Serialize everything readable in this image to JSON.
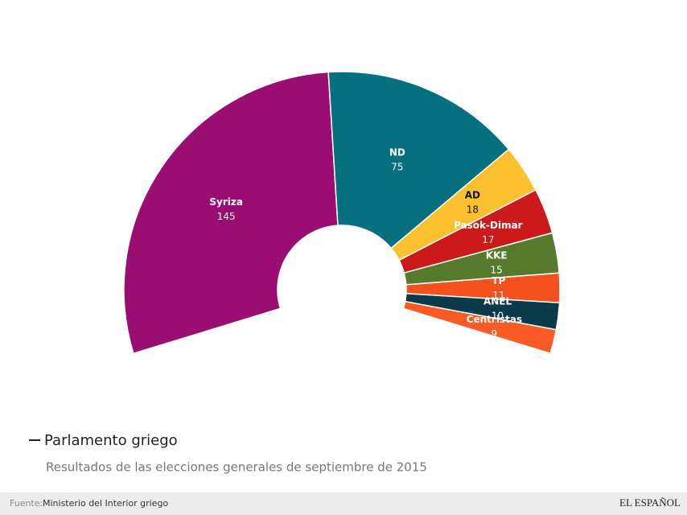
{
  "chart_data": {
    "type": "semi-donut",
    "title": "Parlamento griego",
    "subtitle": "Resultados de las elecciones generales de septiembre de 2015",
    "source_label": "Fuente:",
    "source": "Ministerio del Interior griego",
    "brand": "EL ESPAÑOL",
    "categories": [
      "Syriza",
      "ND",
      "AD",
      "Pasok-Dimar",
      "KKE",
      "TP",
      "ANEL",
      "Centristas"
    ],
    "values": [
      145,
      75,
      18,
      17,
      15,
      11,
      10,
      9
    ],
    "colors": [
      "#9a0d72",
      "#06707e",
      "#fbc02d",
      "#cc1a1a",
      "#567a2b",
      "#f4511e",
      "#0b3a48",
      "#fa5a24"
    ],
    "label_colors": [
      "#ffffff",
      "#ffffff",
      "#111111",
      "#ffffff",
      "#ffffff",
      "#ffffff",
      "#ffffff",
      "#ffffff"
    ]
  }
}
